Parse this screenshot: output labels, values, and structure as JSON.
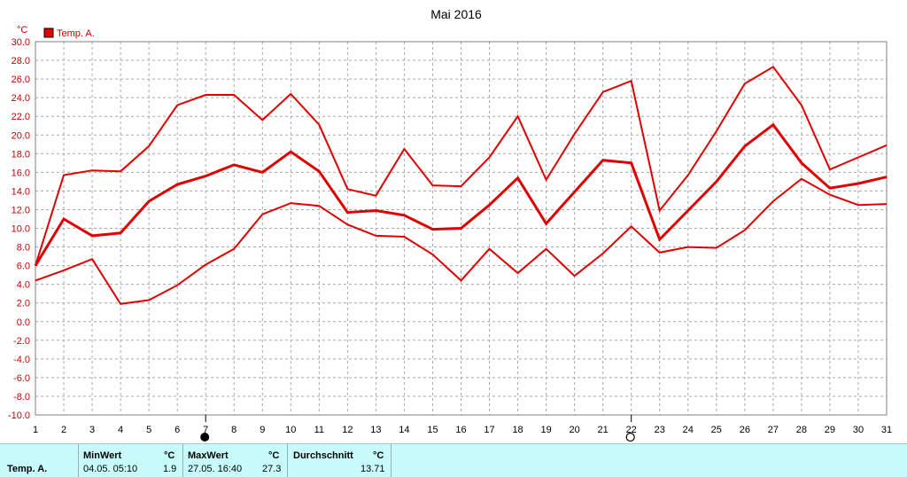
{
  "title": "Mai 2016",
  "unit_label": "°C",
  "legend": {
    "color": "#e00000",
    "label": "Temp. A."
  },
  "markers": {
    "new_moon_day": 7,
    "full_moon_day": 22
  },
  "footer": {
    "row_label": "Temp. A.",
    "min": {
      "header": "MinWert",
      "unit": "°C",
      "when": "04.05.  05:10",
      "value": "1.9"
    },
    "max": {
      "header": "MaxWert",
      "unit": "°C",
      "when": "27.05.  16:40",
      "value": "27.3"
    },
    "avg": {
      "header": "Durchschnitt",
      "unit": "°C",
      "value": "13.71"
    }
  },
  "chart_data": {
    "type": "line",
    "title": "Mai 2016",
    "ylabel": "°C",
    "xlabel": "",
    "ylim": [
      -10,
      30
    ],
    "yticks": [
      "30.0",
      "28.0",
      "26.0",
      "24.0",
      "22.0",
      "20.0",
      "18.0",
      "16.0",
      "14.0",
      "12.0",
      "10.0",
      "8.0",
      "6.0",
      "4.0",
      "2.0",
      "0.0",
      "-2.0",
      "-4.0",
      "-6.0",
      "-8.0",
      "-10.0"
    ],
    "x": [
      1,
      2,
      3,
      4,
      5,
      6,
      7,
      8,
      9,
      10,
      11,
      12,
      13,
      14,
      15,
      16,
      17,
      18,
      19,
      20,
      21,
      22,
      23,
      24,
      25,
      26,
      27,
      28,
      29,
      30,
      31
    ],
    "grid": true,
    "legend_position": "top-left",
    "series": [
      {
        "name": "Temp. A.",
        "color": "#e00000",
        "values": [
          6.0,
          15.7,
          16.2,
          16.1,
          18.8,
          23.2,
          24.3,
          24.3,
          21.6,
          24.4,
          21.1,
          14.2,
          13.5,
          18.5,
          14.6,
          14.5,
          17.6,
          22.0,
          15.2,
          20.1,
          24.6,
          25.8,
          11.9,
          15.7,
          20.4,
          25.5,
          27.3,
          23.2,
          16.3,
          17.6,
          18.9
        ]
      },
      {
        "name": "Temp. A.",
        "color": "#e00000",
        "values": [
          6.0,
          11.0,
          9.2,
          9.5,
          12.9,
          14.7,
          15.6,
          16.8,
          16.0,
          18.2,
          16.1,
          11.7,
          11.9,
          11.4,
          9.9,
          10.0,
          12.5,
          15.4,
          10.5,
          13.9,
          17.3,
          17.0,
          8.8,
          11.9,
          15.0,
          18.8,
          21.1,
          17.0,
          14.3,
          14.8,
          15.5
        ]
      },
      {
        "name": "Temp. A.",
        "color": "#e00000",
        "values": [
          4.4,
          5.5,
          6.7,
          1.9,
          2.3,
          3.9,
          6.1,
          7.8,
          11.5,
          12.7,
          12.4,
          10.4,
          9.2,
          9.1,
          7.2,
          4.4,
          7.8,
          5.2,
          7.8,
          4.9,
          7.3,
          10.2,
          7.4,
          8.0,
          7.9,
          9.8,
          12.9,
          15.3,
          13.6,
          12.5,
          12.6
        ]
      }
    ]
  }
}
